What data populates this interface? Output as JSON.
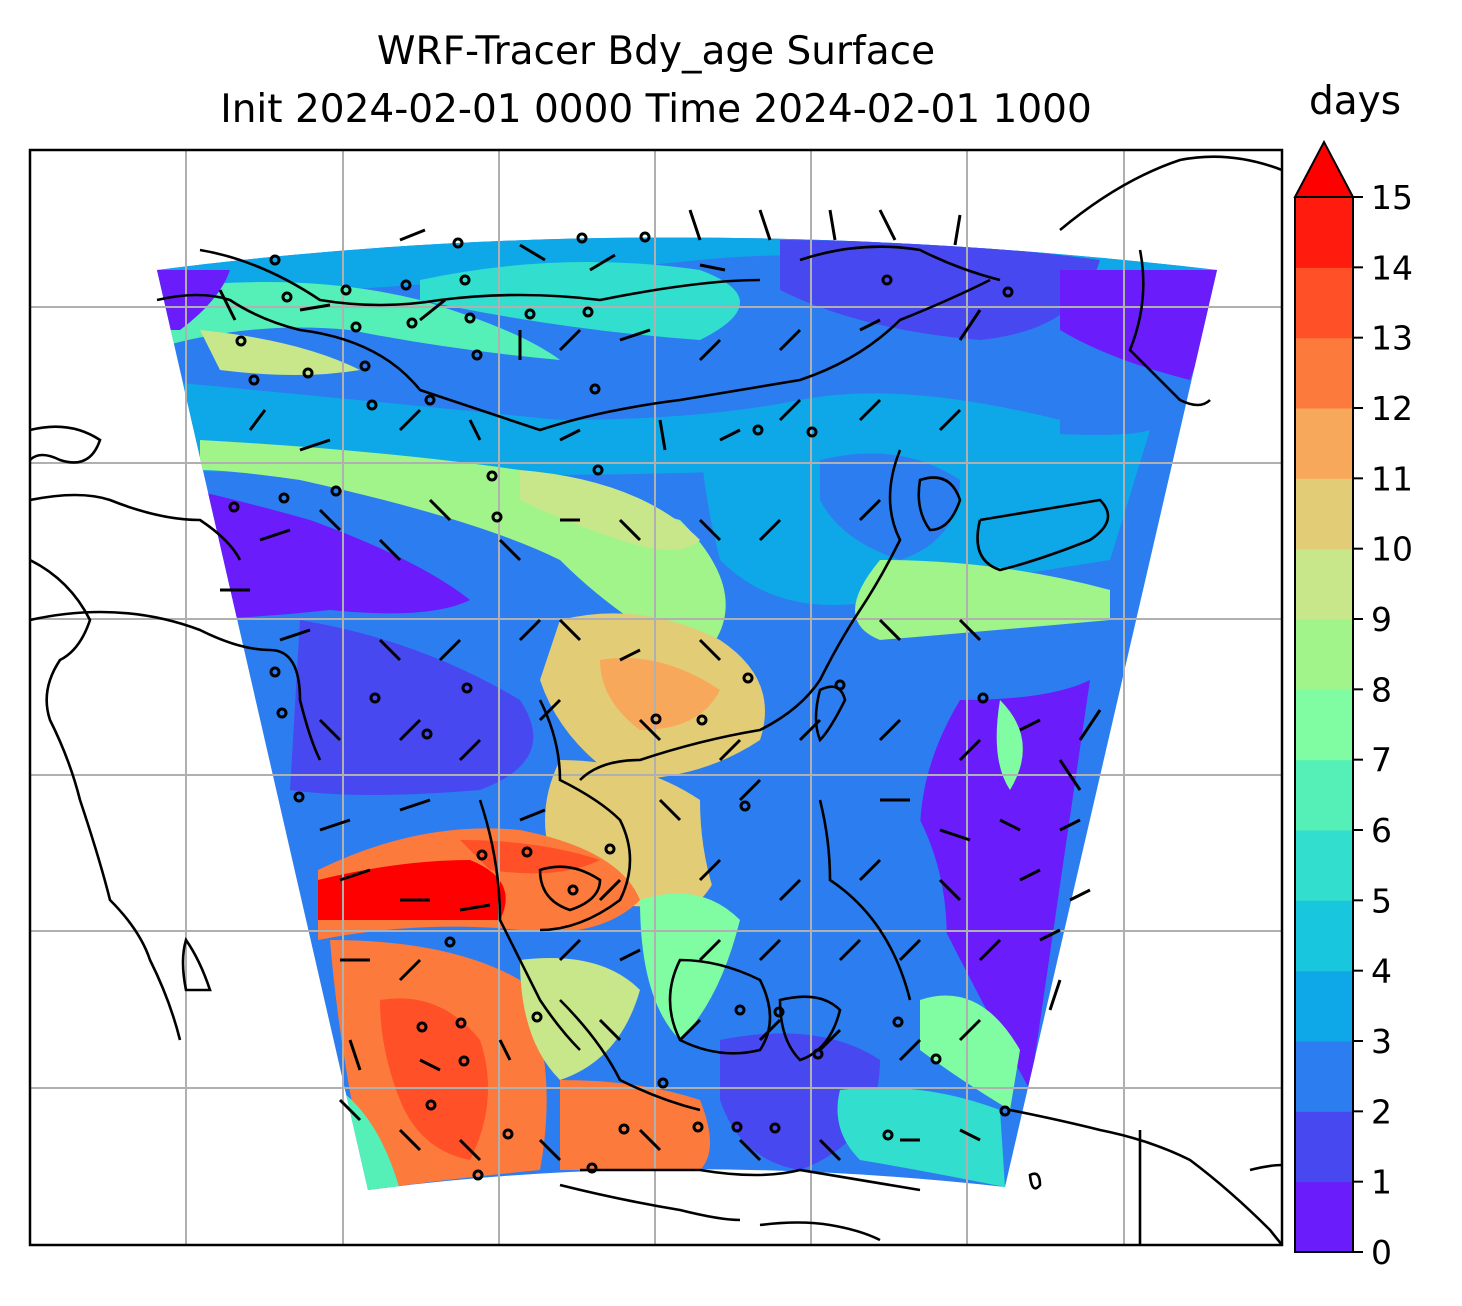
{
  "title_line1": "WRF-Tracer Bdy_age Surface",
  "title_line2": "Init 2024-02-01 0000 Time 2024-02-01 1000",
  "colorbar": {
    "unit": "days",
    "ticks": [
      "0",
      "1",
      "2",
      "3",
      "4",
      "5",
      "6",
      "7",
      "8",
      "9",
      "10",
      "11",
      "12",
      "13",
      "14",
      "15"
    ],
    "levels": [
      {
        "range": "0-1",
        "color": "#6a1cfb"
      },
      {
        "range": "1-2",
        "color": "#4848f0"
      },
      {
        "range": "2-3",
        "color": "#2c7ef0"
      },
      {
        "range": "3-4",
        "color": "#0ea8e8"
      },
      {
        "range": "4-5",
        "color": "#18c6de"
      },
      {
        "range": "5-6",
        "color": "#32dece"
      },
      {
        "range": "6-7",
        "color": "#54f0b8"
      },
      {
        "range": "7-8",
        "color": "#80fca2"
      },
      {
        "range": "8-9",
        "color": "#a0f48a"
      },
      {
        "range": "9-10",
        "color": "#c8e68a"
      },
      {
        "range": "10-11",
        "color": "#e2cc76"
      },
      {
        "range": "11-12",
        "color": "#f8a85a"
      },
      {
        "range": "12-13",
        "color": "#fc7a3c"
      },
      {
        "range": "13-14",
        "color": "#ff5028"
      },
      {
        "range": "14-15",
        "color": "#ff1c0e"
      }
    ],
    "extend_color": "#ff0000"
  },
  "map": {
    "field": "Bdy_age",
    "level": "Surface",
    "gridlines": true,
    "coastlines": true,
    "wind_barbs": true
  }
}
